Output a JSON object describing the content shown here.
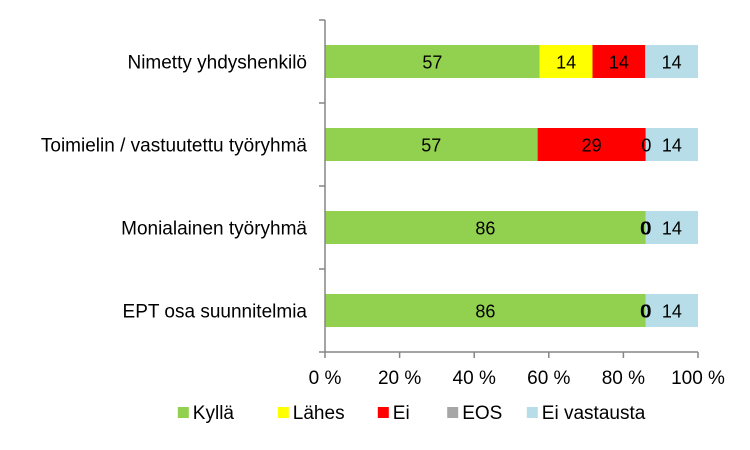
{
  "chart_data": {
    "type": "bar",
    "orientation": "horizontal",
    "stacked": "percent",
    "categories": [
      "Nimetty yhdyshenkilö",
      "Toimielin / vastuutettu työryhmä",
      "Monialainen työryhmä",
      "EPT osa suunnitelmia"
    ],
    "series": [
      {
        "name": "Kyllä",
        "color": "#92D050",
        "values": [
          57,
          57,
          86,
          86
        ]
      },
      {
        "name": "Lähes",
        "color": "#FFFF00",
        "values": [
          14,
          0,
          0,
          0
        ]
      },
      {
        "name": "Ei",
        "color": "#FF0000",
        "values": [
          14,
          29,
          0,
          0
        ]
      },
      {
        "name": "EOS",
        "color": "#A6A6A6",
        "values": [
          0,
          0,
          0,
          0
        ]
      },
      {
        "name": "Ei vastausta",
        "color": "#B7DEE8",
        "values": [
          14,
          14,
          14,
          14
        ]
      }
    ],
    "data_labels": [
      {
        "category": 0,
        "series": 0,
        "text": "57"
      },
      {
        "category": 0,
        "series": 1,
        "text": "14"
      },
      {
        "category": 0,
        "series": 2,
        "text": "14"
      },
      {
        "category": 0,
        "series": 4,
        "text": "14"
      },
      {
        "category": 1,
        "series": 0,
        "text": "57"
      },
      {
        "category": 1,
        "series": 2,
        "text": "29"
      },
      {
        "category": 1,
        "series": 3,
        "text": "0"
      },
      {
        "category": 1,
        "series": 4,
        "text": "14"
      },
      {
        "category": 2,
        "series": 0,
        "text": "86"
      },
      {
        "category": 2,
        "series": 1,
        "text": "0"
      },
      {
        "category": 2,
        "series": 2,
        "text": "0"
      },
      {
        "category": 2,
        "series": 3,
        "text": "0"
      },
      {
        "category": 2,
        "series": 4,
        "text": "14"
      },
      {
        "category": 3,
        "series": 0,
        "text": "86"
      },
      {
        "category": 3,
        "series": 1,
        "text": "0"
      },
      {
        "category": 3,
        "series": 2,
        "text": "0"
      },
      {
        "category": 3,
        "series": 3,
        "text": "0"
      },
      {
        "category": 3,
        "series": 4,
        "text": "14"
      }
    ],
    "x_ticks": [
      "0 %",
      "20 %",
      "40 %",
      "60 %",
      "80 %",
      "100 %"
    ],
    "xlim": [
      0,
      100
    ],
    "grid": false,
    "legend": "bottom",
    "title": "",
    "xlabel": "",
    "ylabel": ""
  }
}
